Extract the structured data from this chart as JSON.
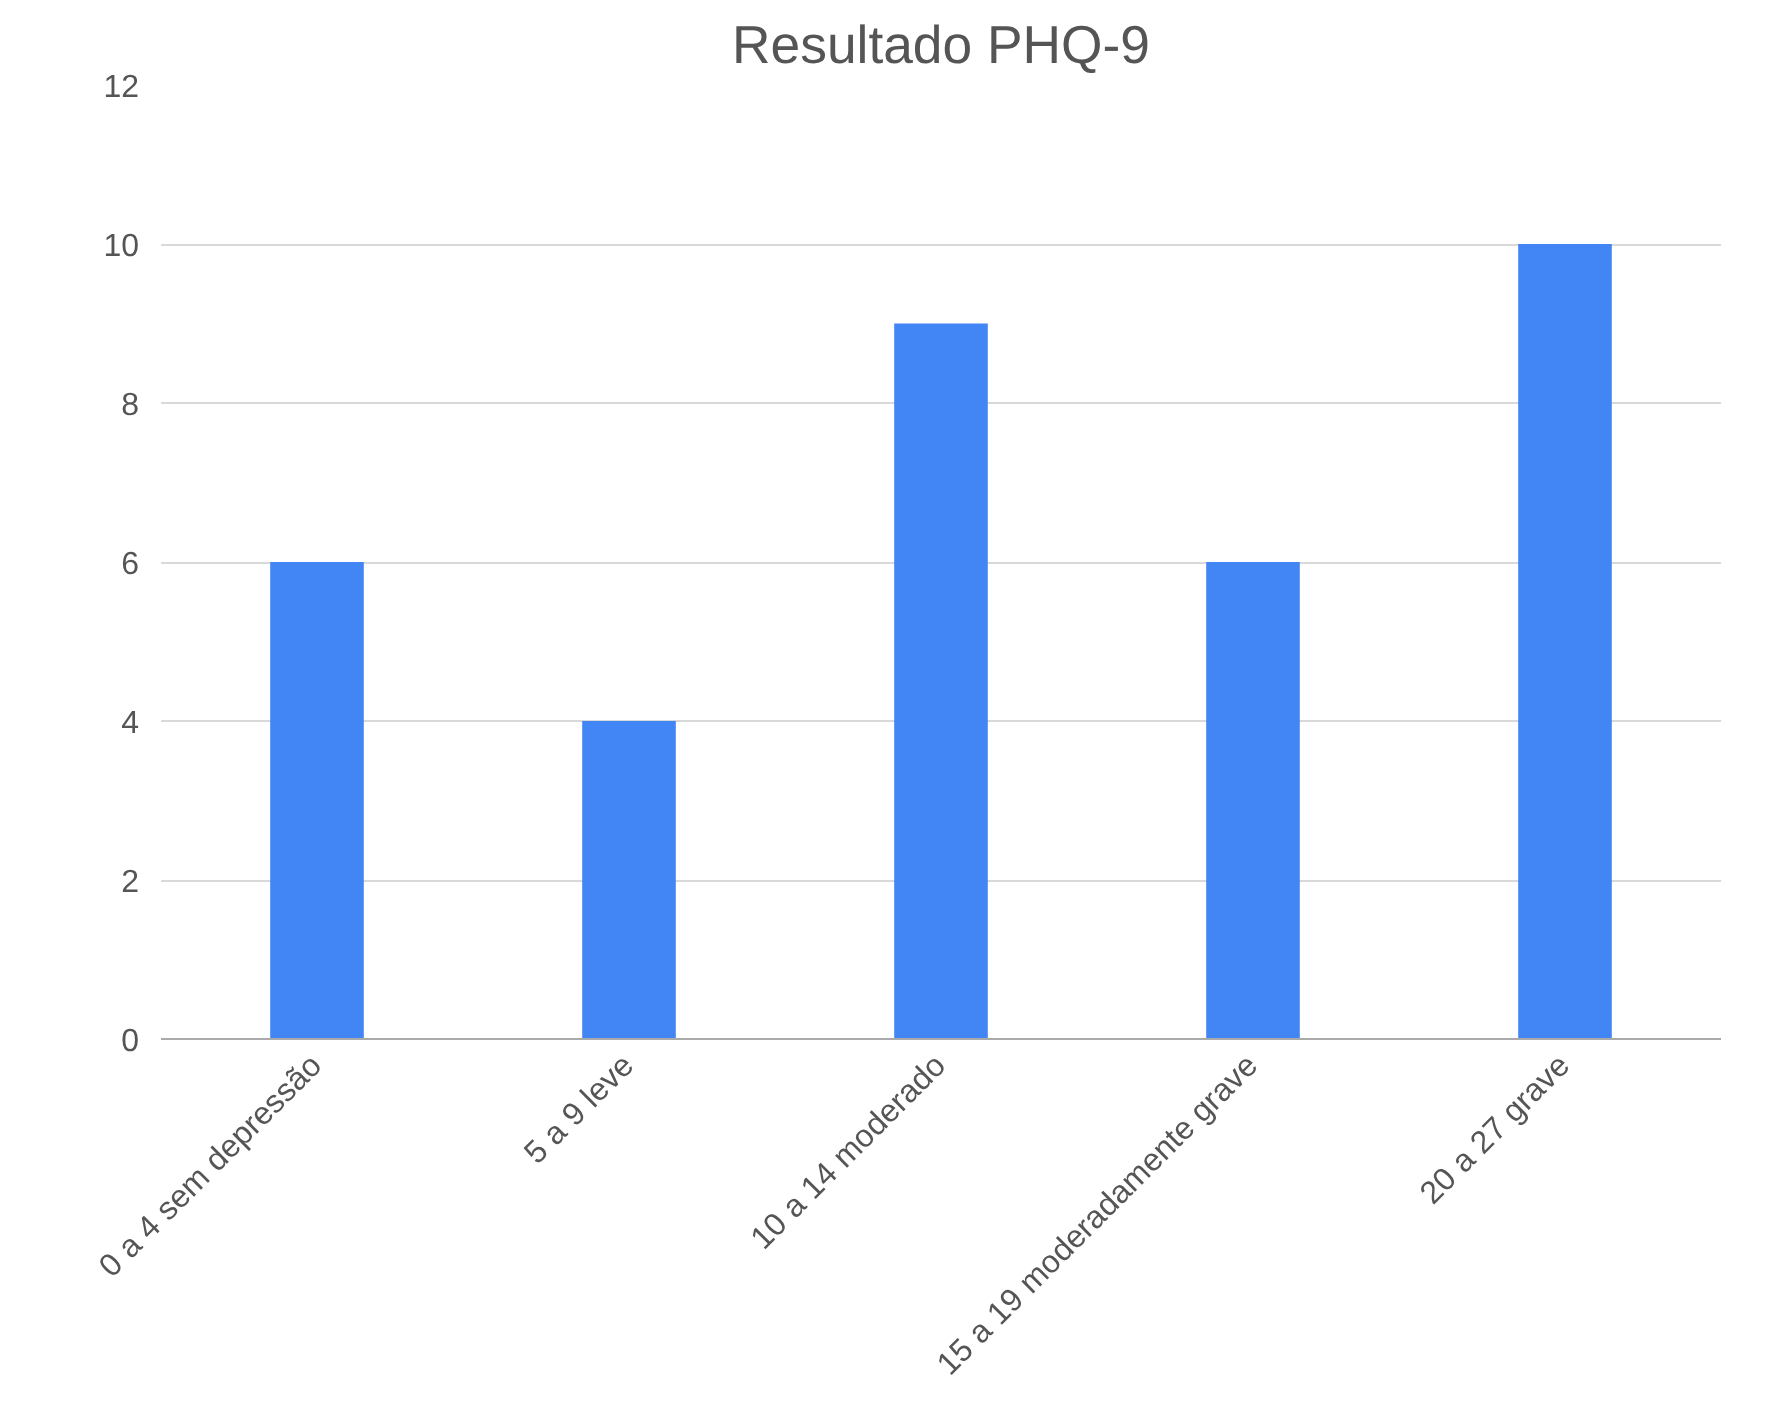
{
  "chart_data": {
    "type": "bar",
    "title": "Resultado PHQ-9",
    "categories": [
      "0 a 4 sem depressão",
      "5 a 9 leve",
      "10 a 14 moderado",
      "15 a 19 moderadamente grave",
      "20 a 27 grave"
    ],
    "values": [
      6,
      4,
      9,
      6,
      10
    ],
    "color": "#4285f4",
    "ylim": [
      0,
      12
    ],
    "yticks": [
      0,
      2,
      4,
      6,
      8,
      10,
      12
    ],
    "grid": "y"
  }
}
